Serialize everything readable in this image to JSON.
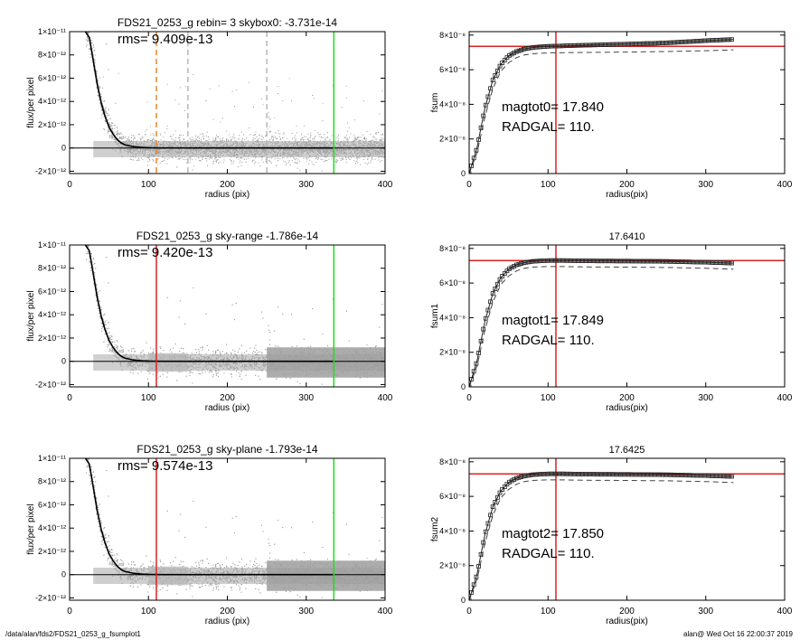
{
  "footer": {
    "path": "/data/alan/fds2/FDS21_0253_g_fsumplot1",
    "stamp": "alan@  Wed Oct 16 22:00:37 2019"
  },
  "chart_data": [
    {
      "type": "scatter",
      "title": "FDS21_0253_g rebin= 3    skybox0: -3.731e-14",
      "annotation": "rms= 9.409e-13",
      "xlabel": "radius (pix)",
      "ylabel": "flux/per pixel",
      "xlim": [
        0,
        400
      ],
      "ylim": [
        -2.2e-12,
        1e-11
      ],
      "xticks": [
        0,
        100,
        200,
        300,
        400
      ],
      "yticks": [
        -2e-12,
        0,
        2e-12,
        4e-12,
        6e-12,
        8e-12,
        1e-11
      ],
      "ytick_labels": [
        "-2×10⁻¹²",
        "0",
        "2×10⁻¹²",
        "4×10⁻¹²",
        "6×10⁻¹²",
        "8×10⁻¹²",
        "1×10⁻¹¹"
      ],
      "vlines": [
        {
          "x": 110,
          "color": "#e8862a",
          "style": "dashed"
        },
        {
          "x": 150,
          "color": "#b8b8b8",
          "style": "dashed"
        },
        {
          "x": 250,
          "color": "#b8b8b8",
          "style": "dashed"
        },
        {
          "x": 335,
          "color": "#22dd22",
          "style": "solid"
        }
      ],
      "profile": {
        "x": [
          20,
          25,
          30,
          35,
          40,
          45,
          50,
          55,
          60,
          65,
          70,
          80,
          90,
          100,
          120,
          150,
          200,
          250,
          300,
          335
        ],
        "y": [
          1e-11,
          9.5e-12,
          7.5e-12,
          5.5e-12,
          3.9e-12,
          2.7e-12,
          1.8e-12,
          1.2e-12,
          7.5e-13,
          4.5e-13,
          2.8e-13,
          1.2e-13,
          5e-14,
          2e-14,
          0,
          0,
          0,
          0,
          0,
          0
        ]
      }
    },
    {
      "type": "line",
      "title": "",
      "xlabel": "radius(pix)",
      "ylabel": "fsum",
      "xlim": [
        0,
        400
      ],
      "ylim": [
        0,
        8.2e-08
      ],
      "xticks": [
        0,
        100,
        200,
        300,
        400
      ],
      "yticks": [
        0,
        2e-08,
        4e-08,
        6e-08,
        8e-08
      ],
      "ytick_labels": [
        "0",
        "2×10⁻⁸",
        "4×10⁻⁸",
        "6×10⁻⁸",
        "8×10⁻⁸"
      ],
      "hline": 7.35e-08,
      "vline": 110,
      "annotations": [
        "magtot0=  17.840",
        "RADGAL=    110."
      ],
      "curve": {
        "x": [
          0,
          10,
          20,
          30,
          40,
          50,
          60,
          70,
          80,
          90,
          100,
          120,
          150,
          200,
          250,
          300,
          335
        ],
        "y": [
          0,
          1.5e-08,
          3.8e-08,
          5.4e-08,
          6.3e-08,
          6.8e-08,
          7.05e-08,
          7.2e-08,
          7.28e-08,
          7.32e-08,
          7.35e-08,
          7.38e-08,
          7.42e-08,
          7.48e-08,
          7.55e-08,
          7.68e-08,
          7.75e-08
        ]
      },
      "dashed": {
        "x": [
          0,
          10,
          20,
          30,
          40,
          50,
          60,
          70,
          80,
          90,
          100,
          120,
          150,
          200,
          250,
          300,
          335
        ],
        "y": [
          0,
          1.2e-08,
          3.3e-08,
          4.9e-08,
          5.9e-08,
          6.4e-08,
          6.7e-08,
          6.85e-08,
          6.92e-08,
          6.95e-08,
          6.97e-08,
          6.99e-08,
          7e-08,
          7.02e-08,
          7.05e-08,
          7.1e-08,
          7.15e-08
        ]
      }
    },
    {
      "type": "scatter",
      "title": "FDS21_0253_g sky-range -1.786e-14",
      "annotation": "rms= 9.420e-13",
      "xlabel": "radius (pix)",
      "ylabel": "flux/per pixel",
      "xlim": [
        0,
        400
      ],
      "ylim": [
        -2.2e-12,
        1e-11
      ],
      "xticks": [
        0,
        100,
        200,
        300,
        400
      ],
      "yticks": [
        -2e-12,
        0,
        2e-12,
        4e-12,
        6e-12,
        8e-12,
        1e-11
      ],
      "ytick_labels": [
        "-2×10⁻¹²",
        "0",
        "2×10⁻¹²",
        "4×10⁻¹²",
        "6×10⁻¹²",
        "8×10⁻¹²",
        "1×10⁻¹¹"
      ],
      "vlines": [
        {
          "x": 110,
          "color": "#dd2222",
          "style": "solid"
        },
        {
          "x": 335,
          "color": "#22dd22",
          "style": "solid"
        }
      ],
      "profile": {
        "x": [
          20,
          25,
          30,
          35,
          40,
          45,
          50,
          55,
          60,
          65,
          70,
          80,
          90,
          100,
          120,
          150,
          200,
          250,
          300,
          335
        ],
        "y": [
          1e-11,
          9.5e-12,
          7.5e-12,
          5.5e-12,
          3.9e-12,
          2.7e-12,
          1.8e-12,
          1.2e-12,
          7.5e-13,
          4.5e-13,
          2.8e-13,
          1.2e-13,
          5e-14,
          2e-14,
          0,
          0,
          0,
          0,
          0,
          0
        ]
      }
    },
    {
      "type": "line",
      "title": "17.6410",
      "xlabel": "radius(pix)",
      "ylabel": "fsum1",
      "xlim": [
        0,
        400
      ],
      "ylim": [
        0,
        8.2e-08
      ],
      "xticks": [
        0,
        100,
        200,
        300,
        400
      ],
      "yticks": [
        0,
        2e-08,
        4e-08,
        6e-08,
        8e-08
      ],
      "ytick_labels": [
        "0",
        "2×10⁻⁸",
        "4×10⁻⁸",
        "6×10⁻⁸",
        "8×10⁻⁸"
      ],
      "hline": 7.3e-08,
      "vline": 110,
      "annotations": [
        "magtot1=  17.849",
        "RADGAL=    110."
      ],
      "curve": {
        "x": [
          0,
          10,
          20,
          30,
          40,
          50,
          60,
          70,
          80,
          90,
          100,
          120,
          150,
          200,
          250,
          300,
          335
        ],
        "y": [
          0,
          1.5e-08,
          3.8e-08,
          5.4e-08,
          6.3e-08,
          6.8e-08,
          7.05e-08,
          7.18e-08,
          7.25e-08,
          7.28e-08,
          7.3e-08,
          7.3e-08,
          7.28e-08,
          7.27e-08,
          7.25e-08,
          7.2e-08,
          7.15e-08
        ]
      },
      "dashed": {
        "x": [
          0,
          10,
          20,
          30,
          40,
          50,
          60,
          70,
          80,
          90,
          100,
          120,
          150,
          200,
          250,
          300,
          335
        ],
        "y": [
          0,
          1.2e-08,
          3.3e-08,
          4.9e-08,
          5.9e-08,
          6.4e-08,
          6.7e-08,
          6.85e-08,
          6.92e-08,
          6.94e-08,
          6.95e-08,
          6.95e-08,
          6.93e-08,
          6.92e-08,
          6.9e-08,
          6.85e-08,
          6.8e-08
        ]
      }
    },
    {
      "type": "scatter",
      "title": "FDS21_0253_g sky-plane -1.793e-14",
      "annotation": "rms= 9.574e-13",
      "xlabel": "radius (pix)",
      "ylabel": "flux/per pixel",
      "xlim": [
        0,
        400
      ],
      "ylim": [
        -2.2e-12,
        1e-11
      ],
      "xticks": [
        0,
        100,
        200,
        300,
        400
      ],
      "yticks": [
        -2e-12,
        0,
        2e-12,
        4e-12,
        6e-12,
        8e-12,
        1e-11
      ],
      "ytick_labels": [
        "-2×10⁻¹²",
        "0",
        "2×10⁻¹²",
        "4×10⁻¹²",
        "6×10⁻¹²",
        "8×10⁻¹²",
        "1×10⁻¹¹"
      ],
      "vlines": [
        {
          "x": 110,
          "color": "#dd2222",
          "style": "solid"
        },
        {
          "x": 335,
          "color": "#22dd22",
          "style": "solid"
        }
      ],
      "profile": {
        "x": [
          20,
          25,
          30,
          35,
          40,
          45,
          50,
          55,
          60,
          65,
          70,
          80,
          90,
          100,
          120,
          150,
          200,
          250,
          300,
          335
        ],
        "y": [
          1e-11,
          9.5e-12,
          7.5e-12,
          5.5e-12,
          3.9e-12,
          2.7e-12,
          1.8e-12,
          1.2e-12,
          7.5e-13,
          4.5e-13,
          2.8e-13,
          1.2e-13,
          5e-14,
          2e-14,
          0,
          0,
          0,
          0,
          0,
          0
        ]
      }
    },
    {
      "type": "line",
      "title": "17.6425",
      "xlabel": "radius(pix)",
      "ylabel": "fsum2",
      "xlim": [
        0,
        400
      ],
      "ylim": [
        0,
        8.2e-08
      ],
      "xticks": [
        0,
        100,
        200,
        300,
        400
      ],
      "yticks": [
        0,
        2e-08,
        4e-08,
        6e-08,
        8e-08
      ],
      "ytick_labels": [
        "0",
        "2×10⁻⁸",
        "4×10⁻⁸",
        "6×10⁻⁸",
        "8×10⁻⁸"
      ],
      "hline": 7.3e-08,
      "vline": 110,
      "annotations": [
        "magtot2=  17.850",
        "RADGAL=    110."
      ],
      "curve": {
        "x": [
          0,
          10,
          20,
          30,
          40,
          50,
          60,
          70,
          80,
          90,
          100,
          120,
          150,
          200,
          250,
          300,
          335
        ],
        "y": [
          0,
          1.5e-08,
          3.8e-08,
          5.4e-08,
          6.3e-08,
          6.8e-08,
          7.05e-08,
          7.18e-08,
          7.25e-08,
          7.28e-08,
          7.3e-08,
          7.3e-08,
          7.28e-08,
          7.27e-08,
          7.25e-08,
          7.2e-08,
          7.15e-08
        ]
      },
      "dashed": {
        "x": [
          0,
          10,
          20,
          30,
          40,
          50,
          60,
          70,
          80,
          90,
          100,
          120,
          150,
          200,
          250,
          300,
          335
        ],
        "y": [
          0,
          1.2e-08,
          3.3e-08,
          4.9e-08,
          5.9e-08,
          6.4e-08,
          6.7e-08,
          6.85e-08,
          6.92e-08,
          6.94e-08,
          6.95e-08,
          6.95e-08,
          6.93e-08,
          6.92e-08,
          6.9e-08,
          6.85e-08,
          6.8e-08
        ]
      }
    }
  ]
}
